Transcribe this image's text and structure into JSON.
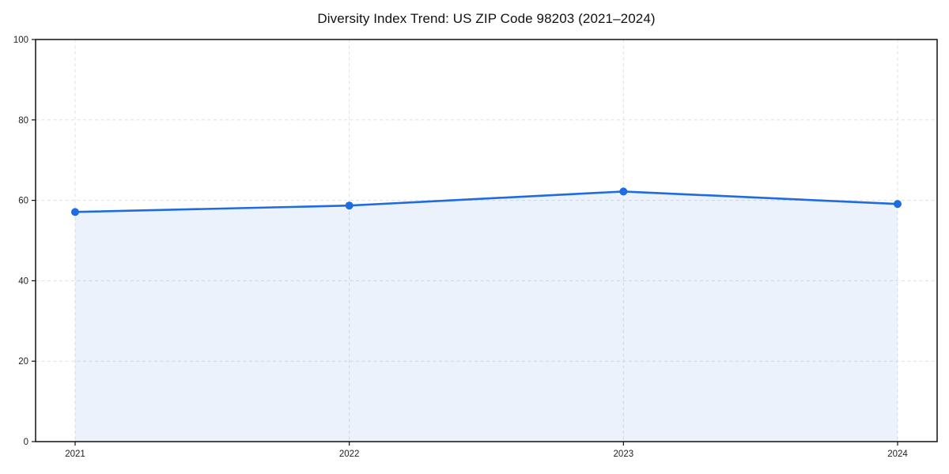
{
  "chart_data": {
    "type": "area",
    "title": "Diversity Index Trend: US ZIP Code 98203 (2021–2024)",
    "categories": [
      "2021",
      "2022",
      "2023",
      "2024"
    ],
    "series": [
      {
        "name": "Diversity Index",
        "values": [
          57.1,
          58.7,
          62.2,
          59.1
        ]
      }
    ],
    "xlabel": "",
    "ylabel": "",
    "ylim": [
      0,
      100
    ],
    "yticks": [
      0,
      20,
      40,
      60,
      80,
      100
    ],
    "grid": true,
    "grid_style": "dashed",
    "legend_position": "none",
    "colors": {
      "line": "#1f6be0",
      "marker": "#1f6be0",
      "fill": "rgba(31,107,224,0.09)",
      "grid": "#e0e0e0",
      "spine": "#111111",
      "tick_label": "#222222",
      "title": "#111111",
      "background": "#ffffff"
    }
  }
}
